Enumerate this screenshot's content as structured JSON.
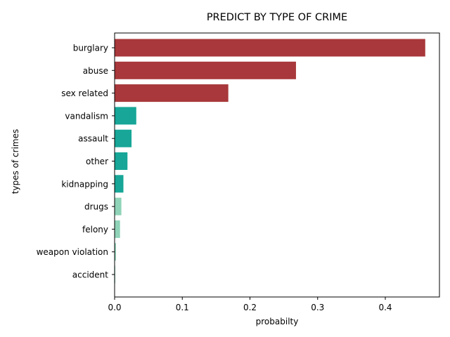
{
  "chart_data": {
    "type": "bar",
    "orientation": "horizontal",
    "title": "PREDICT BY TYPE OF CRIME",
    "xlabel": "probabilty",
    "ylabel": "types of crimes",
    "xlim": [
      0,
      0.48
    ],
    "x_ticks": [
      "0.0",
      "0.1",
      "0.2",
      "0.3",
      "0.4"
    ],
    "x_tick_values": [
      0.0,
      0.1,
      0.2,
      0.3,
      0.4
    ],
    "grid": false,
    "categories": [
      "burglary",
      "abuse",
      "sex related",
      "vandalism",
      "assault",
      "other",
      "kidnapping",
      "drugs",
      "felony",
      "weapon violation",
      "accident"
    ],
    "values": [
      0.459,
      0.268,
      0.168,
      0.032,
      0.025,
      0.019,
      0.013,
      0.01,
      0.008,
      0.002,
      0.001
    ],
    "colors": [
      "#a8383b",
      "#a8383b",
      "#a8383b",
      "#17a697",
      "#17a697",
      "#17a697",
      "#17a697",
      "#8fd3b8",
      "#8fd3b8",
      "#8fd3b8",
      "#8fd3b8"
    ]
  }
}
